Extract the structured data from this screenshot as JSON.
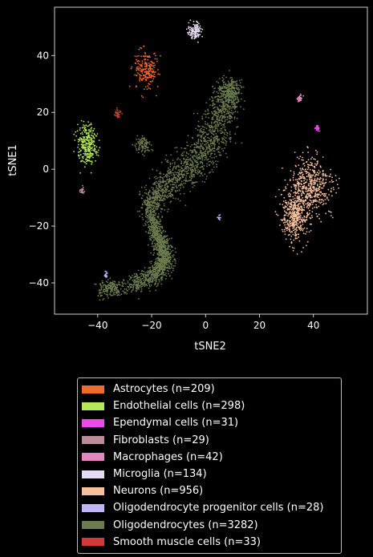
{
  "chart_data": {
    "type": "scatter",
    "xlabel": "tSNE2",
    "ylabel": "tSNE1",
    "xlim": [
      -56,
      60
    ],
    "ylim": [
      -51,
      57
    ],
    "xticks": [
      -40,
      -20,
      0,
      20,
      40
    ],
    "yticks": [
      -40,
      -20,
      0,
      20,
      40
    ],
    "xtick_labels": [
      "−40",
      "−20",
      "0",
      "20",
      "40"
    ],
    "ytick_labels": [
      "−40",
      "−20",
      "0",
      "20",
      "40"
    ],
    "grid": false,
    "legend_placement": "below plot",
    "background": "#000000",
    "series": [
      {
        "name": "Astrocytes (n=209)",
        "color": "#f0692d",
        "n": 209,
        "clusters": [
          {
            "cx": -22,
            "cy": 35,
            "sx": 2.2,
            "sy": 3.2,
            "w": 1
          }
        ]
      },
      {
        "name": "Endothelial cells (n=298)",
        "color": "#b3e857",
        "n": 298,
        "clusters": [
          {
            "cx": -44,
            "cy": 11.5,
            "sx": 1.8,
            "sy": 2.4,
            "w": 0.5
          },
          {
            "cx": -44,
            "cy": 6,
            "sx": 1.8,
            "sy": 2.4,
            "w": 0.5
          }
        ]
      },
      {
        "name": "Ependymal cells (n=31)",
        "color": "#e94ae9",
        "n": 31,
        "clusters": [
          {
            "cx": 41.5,
            "cy": 14.5,
            "sx": 0.4,
            "sy": 0.6,
            "w": 1
          }
        ]
      },
      {
        "name": "Fibroblasts (n=29)",
        "color": "#bd8c99",
        "n": 29,
        "clusters": [
          {
            "cx": -46,
            "cy": -7.5,
            "sx": 0.4,
            "sy": 0.5,
            "w": 1
          }
        ]
      },
      {
        "name": "Macrophages (n=42)",
        "color": "#e586be",
        "n": 42,
        "clusters": [
          {
            "cx": 35,
            "cy": 25,
            "sx": 0.5,
            "sy": 0.5,
            "w": 1
          }
        ]
      },
      {
        "name": "Microglia (n=134)",
        "color": "#e6dcf4",
        "n": 134,
        "clusters": [
          {
            "cx": -4,
            "cy": 48.5,
            "sx": 1.2,
            "sy": 1.3,
            "w": 1
          }
        ]
      },
      {
        "name": "Neurons (n=956)",
        "color": "#f7c09d",
        "n": 956,
        "clusters": [
          {
            "cx": 39,
            "cy": -6,
            "sx": 3.8,
            "sy": 5,
            "w": 0.55
          },
          {
            "cx": 33,
            "cy": -16,
            "sx": 2.5,
            "sy": 4.5,
            "w": 0.45
          }
        ]
      },
      {
        "name": "Oligodendrocyte progenitor cells (n=28)",
        "color": "#c1b5f5",
        "n": 28,
        "clusters": [
          {
            "cx": -37,
            "cy": -37,
            "sx": 0.4,
            "sy": 0.5,
            "w": 0.6
          },
          {
            "cx": 5,
            "cy": -17,
            "sx": 0.3,
            "sy": 0.4,
            "w": 0.4
          }
        ]
      },
      {
        "name": "Oligodendrocytes (n=3282)",
        "color": "#6b7b4d",
        "n": 3282,
        "path": [
          [
            -28,
            -41
          ],
          [
            -20,
            -38
          ],
          [
            -16,
            -34
          ],
          [
            -15,
            -30
          ],
          [
            -17,
            -25
          ],
          [
            -19,
            -20
          ],
          [
            -21,
            -12
          ],
          [
            -16,
            -6
          ],
          [
            -8,
            -1
          ],
          [
            -2,
            4
          ],
          [
            3,
            12
          ],
          [
            6,
            20
          ],
          [
            8,
            26
          ],
          [
            10,
            29
          ]
        ],
        "path_spread": [
          3,
          3,
          3,
          3,
          2.5,
          2.2,
          3.5,
          4.5,
          5.5,
          6,
          6,
          5.5,
          4.5,
          3.5
        ],
        "extra_clusters": [
          {
            "cx": -23,
            "cy": 8.5,
            "sx": 1.3,
            "sy": 1.3,
            "w": 0.03
          },
          {
            "cx": -35,
            "cy": -42,
            "sx": 2.5,
            "sy": 1.5,
            "w": 0.06
          }
        ]
      },
      {
        "name": "Smooth muscle cells (n=33)",
        "color": "#d23a3a",
        "n": 33,
        "clusters": [
          {
            "cx": -32.5,
            "cy": 19.5,
            "sx": 0.6,
            "sy": 0.8,
            "w": 1
          }
        ]
      }
    ]
  }
}
